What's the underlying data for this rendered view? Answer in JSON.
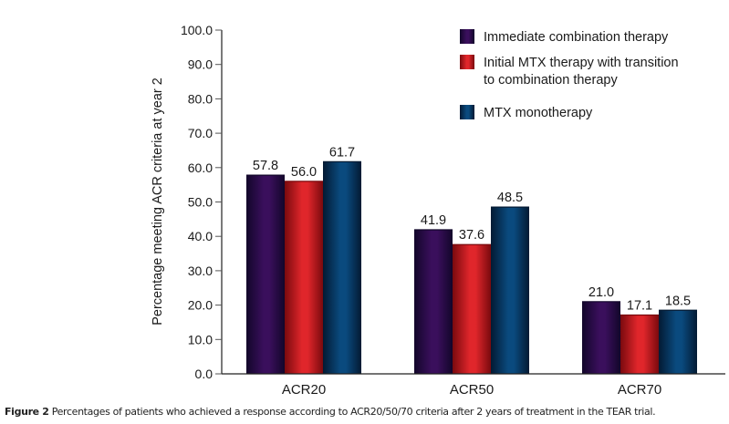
{
  "chart_data": {
    "type": "bar",
    "title": "",
    "xlabel": "",
    "ylabel": "Percentage meeting ACR criteria at year 2",
    "ylim": [
      0,
      100
    ],
    "yticks": [
      "0.0",
      "10.0",
      "20.0",
      "30.0",
      "40.0",
      "50.0",
      "60.0",
      "70.0",
      "80.0",
      "90.0",
      "100.0"
    ],
    "grid": false,
    "legend_position": "top-right",
    "categories": [
      "ACR20",
      "ACR50",
      "ACR70"
    ],
    "series": [
      {
        "name": "Immediate combination therapy",
        "legend_lines": [
          "Immediate combination therapy"
        ],
        "color": "#3a0f5c",
        "edge": "#12062a",
        "values": [
          57.8,
          41.9,
          21.0
        ],
        "labels": [
          "57.8",
          "41.9",
          "21.0"
        ]
      },
      {
        "name": "Initial MTX therapy with transition to combination therapy",
        "legend_lines": [
          "Initial MTX therapy with transition",
          "to combination therapy"
        ],
        "color": "#e0262b",
        "edge": "#7a0a0e",
        "values": [
          56.0,
          37.6,
          17.1
        ],
        "labels": [
          "56.0",
          "37.6",
          "17.1"
        ]
      },
      {
        "name": "MTX monotherapy",
        "legend_lines": [
          "MTX monotherapy"
        ],
        "color": "#0a4a7e",
        "edge": "#031a33",
        "values": [
          61.7,
          48.5,
          18.5
        ],
        "labels": [
          "61.7",
          "48.5",
          "18.5"
        ]
      }
    ]
  },
  "caption": {
    "figure_label": "Figure 2",
    "text": " Percentages of patients who achieved a response according to ACR20/50/70 criteria after 2 years of treatment in the TEAR trial."
  }
}
